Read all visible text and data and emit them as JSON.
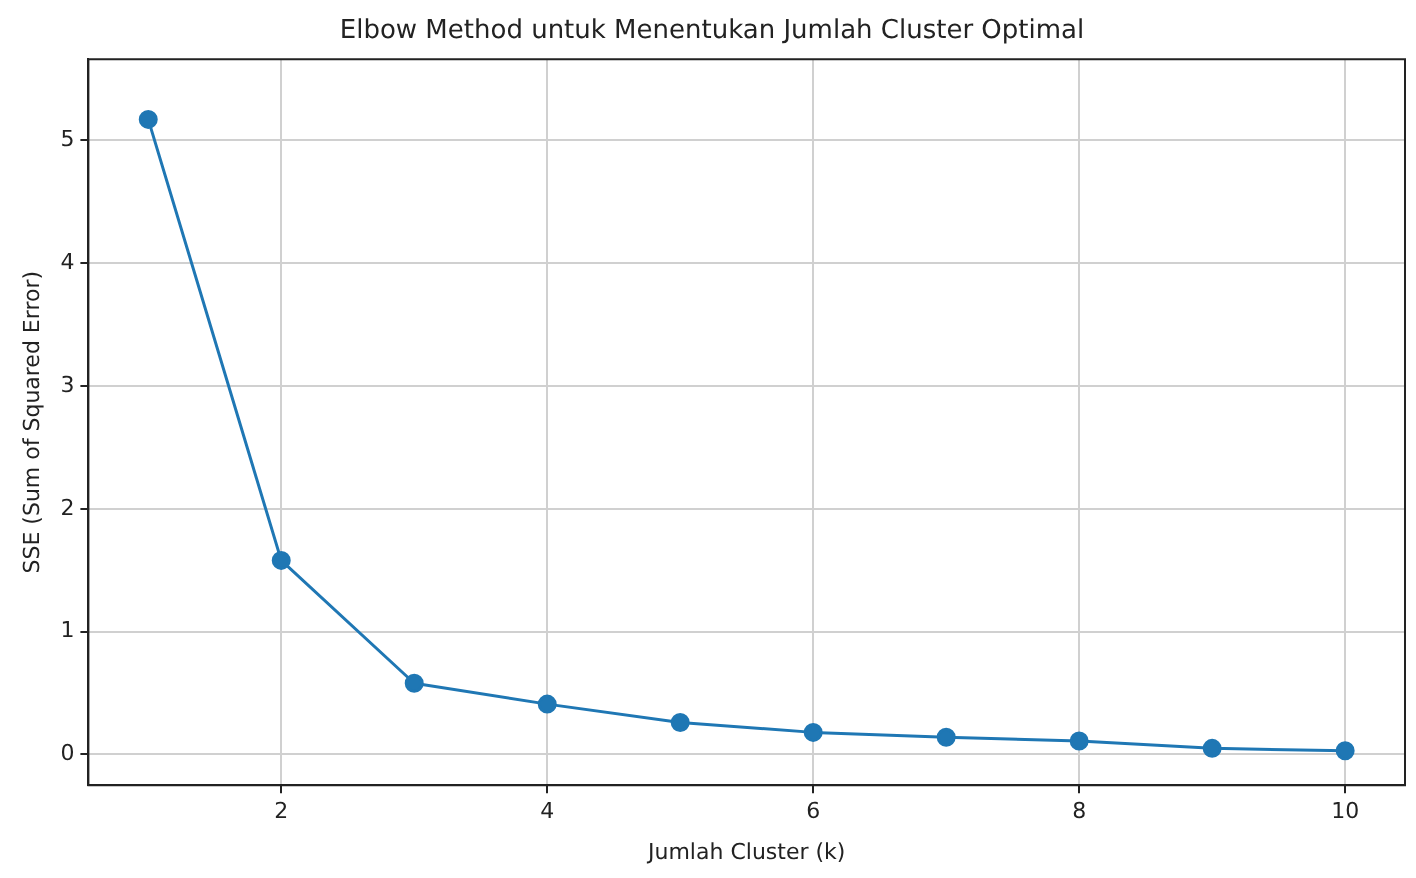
{
  "chart_data": {
    "type": "line",
    "title": "Elbow Method untuk Menentukan Jumlah Cluster Optimal",
    "xlabel": "Jumlah Cluster (k)",
    "ylabel": "SSE (Sum of Squared Error)",
    "x": [
      1,
      2,
      3,
      4,
      5,
      6,
      7,
      8,
      9,
      10
    ],
    "series": [
      {
        "color": "#1f77b4",
        "values": [
          5.17,
          1.58,
          0.58,
          0.41,
          0.26,
          0.18,
          0.14,
          0.11,
          0.05,
          0.03
        ]
      }
    ],
    "xlim": [
      0.55,
      10.45
    ],
    "xticks": [
      2,
      4,
      6,
      8,
      10
    ],
    "ylim": [
      -0.25,
      5.66
    ],
    "yticks": [
      0,
      1,
      2,
      3,
      4,
      5
    ],
    "grid": true,
    "legend": false,
    "marker": "circle",
    "line_style": "solid"
  }
}
